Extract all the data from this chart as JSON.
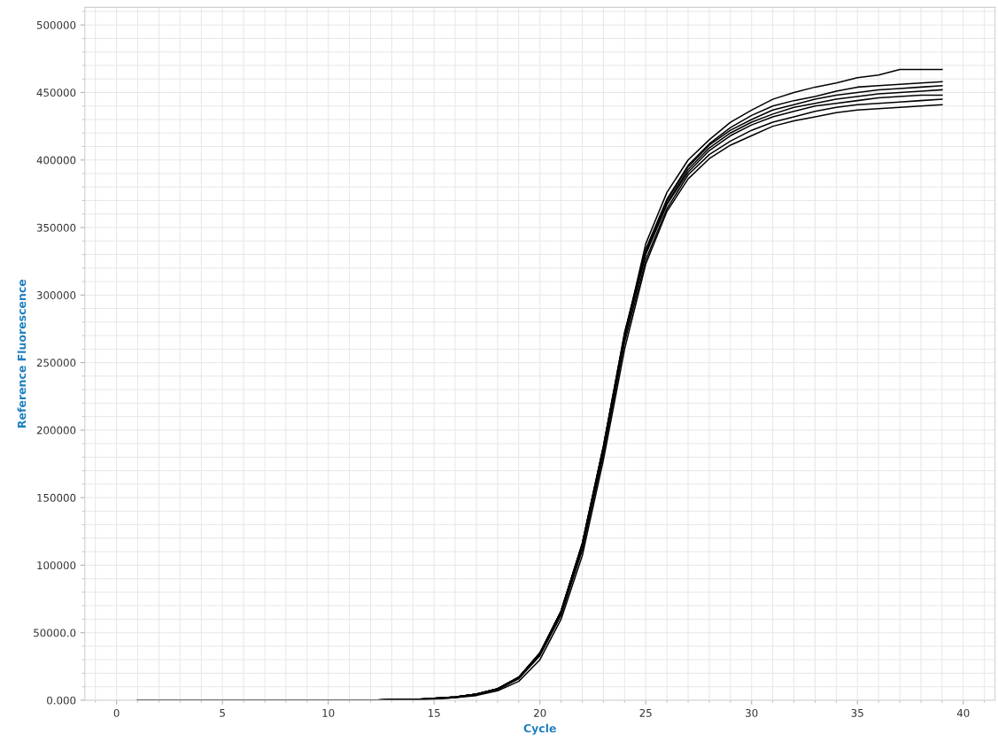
{
  "chart_data": {
    "type": "line",
    "xlabel": "Cycle",
    "ylabel": "Reference Fluorescence",
    "x": [
      1,
      2,
      3,
      4,
      5,
      6,
      7,
      8,
      9,
      10,
      11,
      12,
      13,
      14,
      15,
      16,
      17,
      18,
      19,
      20,
      21,
      22,
      23,
      24,
      25,
      26,
      27,
      28,
      29,
      30,
      31,
      32,
      33,
      34,
      35,
      36,
      37,
      38,
      39
    ],
    "series": [
      {
        "color": "#000000",
        "values": [
          0,
          0,
          0,
          0,
          0,
          0,
          0,
          0,
          0,
          0,
          0,
          0,
          500,
          500,
          1500,
          2500,
          4500,
          8500,
          17000,
          35000,
          66000,
          115000,
          185000,
          270000,
          338000,
          376000,
          400000,
          415000,
          428000,
          437000,
          445000,
          450000,
          454000,
          457000,
          461000,
          463000,
          467000,
          467000,
          467000
        ]
      },
      {
        "color": "#000000",
        "values": [
          0,
          0,
          0,
          0,
          0,
          0,
          0,
          0,
          0,
          0,
          0,
          0,
          500,
          500,
          1500,
          2500,
          4500,
          8500,
          17000,
          35000,
          66000,
          116000,
          188000,
          272000,
          334000,
          371000,
          396000,
          412000,
          424000,
          433000,
          440000,
          444000,
          447000,
          451000,
          454000,
          455000,
          456000,
          457000,
          458000
        ]
      },
      {
        "color": "#000000",
        "values": [
          0,
          0,
          0,
          0,
          0,
          0,
          0,
          0,
          0,
          0,
          0,
          0,
          500,
          500,
          1500,
          2500,
          4500,
          8500,
          17000,
          35000,
          66000,
          116000,
          188000,
          272000,
          333000,
          370000,
          395000,
          411000,
          422000,
          430000,
          437000,
          441000,
          445000,
          448000,
          450000,
          452000,
          453000,
          454000,
          455000
        ]
      },
      {
        "color": "#000000",
        "values": [
          0,
          0,
          0,
          0,
          0,
          0,
          0,
          0,
          0,
          0,
          0,
          0,
          500,
          500,
          1500,
          2500,
          4500,
          8000,
          16000,
          34000,
          64000,
          113000,
          185000,
          268000,
          331000,
          368000,
          393000,
          409000,
          420000,
          428000,
          434000,
          439000,
          442000,
          445000,
          447000,
          449000,
          450000,
          451000,
          452000
        ]
      },
      {
        "color": "#000000",
        "values": [
          0,
          0,
          0,
          0,
          0,
          0,
          0,
          0,
          0,
          0,
          0,
          0,
          500,
          500,
          1500,
          2500,
          4500,
          8500,
          17000,
          35000,
          66000,
          116000,
          188000,
          270000,
          330000,
          367000,
          391000,
          407000,
          418000,
          426000,
          432000,
          436000,
          440000,
          442000,
          444000,
          446000,
          447000,
          448000,
          448000
        ]
      },
      {
        "color": "#000000",
        "values": [
          0,
          0,
          0,
          0,
          0,
          0,
          0,
          0,
          0,
          0,
          0,
          0,
          500,
          500,
          1000,
          2000,
          4000,
          8000,
          16000,
          33000,
          63000,
          111000,
          182000,
          265000,
          326000,
          364000,
          389000,
          404000,
          414000,
          422000,
          428000,
          432000,
          436000,
          439000,
          441000,
          442000,
          443000,
          444000,
          445000
        ]
      },
      {
        "color": "#000000",
        "values": [
          0,
          0,
          0,
          0,
          0,
          0,
          0,
          0,
          0,
          0,
          0,
          0,
          500,
          500,
          1000,
          2000,
          3500,
          7000,
          14000,
          30000,
          60000,
          107000,
          178000,
          260000,
          323000,
          362000,
          386000,
          401000,
          411000,
          418000,
          425000,
          429000,
          432000,
          435000,
          437000,
          438000,
          439000,
          440000,
          441000
        ]
      }
    ],
    "xlim": [
      -1.5,
      41.5
    ],
    "xticks": [
      0,
      5,
      10,
      15,
      20,
      25,
      30,
      35,
      40
    ],
    "ylim": [
      0,
      513000
    ],
    "yticks": [
      {
        "value": 0,
        "label": "0.000"
      },
      {
        "value": 50000,
        "label": "50000.0"
      },
      100000,
      150000,
      200000,
      250000,
      300000,
      350000,
      400000,
      450000,
      500000
    ],
    "grid": true,
    "legend": false,
    "marker": "none",
    "line_style": "solid"
  }
}
